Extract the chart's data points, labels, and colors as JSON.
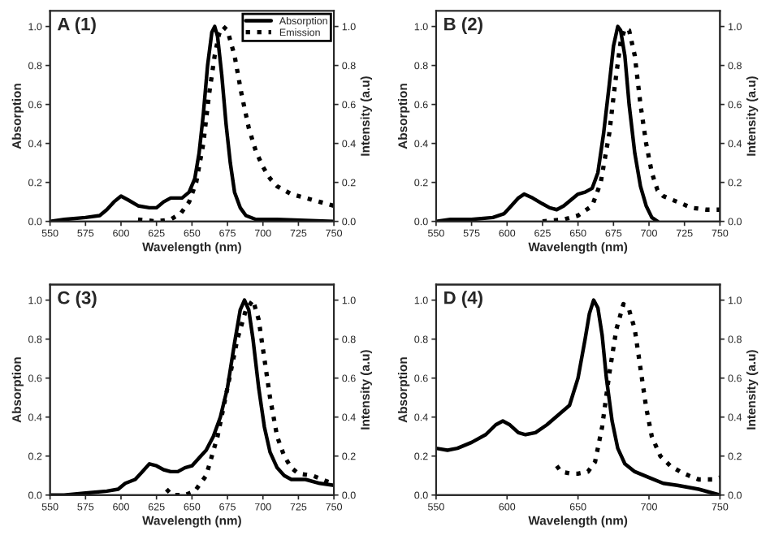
{
  "chart_data": [
    {
      "type": "line",
      "title": "A (1)",
      "xlabel": "Wavelength (nm)",
      "ylabel": "Absorption",
      "y2label": "Intensity (a.u)",
      "legend": "top right",
      "xlim": [
        550,
        750
      ],
      "xticks": [
        550,
        575,
        600,
        625,
        650,
        675,
        700,
        725,
        750
      ],
      "ylim": [
        0,
        1.08
      ],
      "yticks": [
        {
          "value": 0,
          "label": "0.0"
        },
        {
          "value": 0.2,
          "label": "0.2"
        },
        {
          "value": 0.4,
          "label": "0.4"
        },
        {
          "value": 0.6,
          "label": "0.6"
        },
        {
          "value": 0.8,
          "label": "0.8"
        },
        {
          "value": 1,
          "label": "1.0"
        }
      ],
      "y2lim": [
        0,
        1.08
      ],
      "y2ticks": [
        {
          "value": 0,
          "label": "0.0"
        },
        {
          "value": 0.2,
          "label": "0.2"
        },
        {
          "value": 0.4,
          "label": "0.4"
        },
        {
          "value": 0.6,
          "label": "0.6"
        },
        {
          "value": 0.8,
          "label": "0.8"
        },
        {
          "value": 1,
          "label": "1.0"
        }
      ],
      "series": [
        {
          "name": "Absorption",
          "color": "#000000",
          "line_style": "solid",
          "x": [
            550,
            560,
            575,
            585,
            590,
            595,
            600,
            605,
            612,
            620,
            625,
            630,
            635,
            640,
            643,
            648,
            652,
            655,
            658,
            661,
            664,
            666,
            668,
            671,
            674,
            677,
            680,
            684,
            688,
            695,
            710,
            750
          ],
          "values": [
            0.0,
            0.01,
            0.02,
            0.03,
            0.06,
            0.1,
            0.13,
            0.11,
            0.08,
            0.07,
            0.07,
            0.1,
            0.12,
            0.12,
            0.12,
            0.15,
            0.22,
            0.35,
            0.55,
            0.8,
            0.97,
            1.0,
            0.95,
            0.75,
            0.5,
            0.3,
            0.15,
            0.07,
            0.03,
            0.01,
            0.01,
            0.0
          ]
        },
        {
          "name": "Emission",
          "color": "#000000",
          "line_style": "dotted",
          "axis": "y2",
          "x": [
            612,
            625,
            635,
            642,
            648,
            653,
            658,
            662,
            666,
            669,
            672,
            675,
            680,
            685,
            690,
            695,
            700,
            705,
            710,
            720,
            730,
            740,
            750
          ],
          "values": [
            0.01,
            0.0,
            0.01,
            0.04,
            0.1,
            0.2,
            0.4,
            0.65,
            0.85,
            0.96,
            1.0,
            0.98,
            0.85,
            0.65,
            0.48,
            0.36,
            0.28,
            0.22,
            0.18,
            0.14,
            0.12,
            0.1,
            0.08
          ]
        }
      ]
    },
    {
      "type": "line",
      "title": "B (2)",
      "xlabel": "Wavelength (nm)",
      "ylabel": "Absorption",
      "y2label": "Intensity (a.u)",
      "xlim": [
        550,
        750
      ],
      "xticks": [
        550,
        575,
        600,
        625,
        650,
        675,
        700,
        725,
        750
      ],
      "ylim": [
        0,
        1.08
      ],
      "yticks": [
        {
          "value": 0,
          "label": "0.0"
        },
        {
          "value": 0.2,
          "label": "0.2"
        },
        {
          "value": 0.4,
          "label": "0.4"
        },
        {
          "value": 0.6,
          "label": "0.6"
        },
        {
          "value": 0.8,
          "label": "0.8"
        },
        {
          "value": 1,
          "label": "1.0"
        }
      ],
      "y2lim": [
        0,
        1.08
      ],
      "y2ticks": [
        {
          "value": 0,
          "label": "0.0"
        },
        {
          "value": 0.2,
          "label": "0.2"
        },
        {
          "value": 0.4,
          "label": "0.4"
        },
        {
          "value": 0.6,
          "label": "0.6"
        },
        {
          "value": 0.8,
          "label": "0.8"
        },
        {
          "value": 1,
          "label": "1.0"
        }
      ],
      "series": [
        {
          "color": "#000000",
          "line_style": "solid",
          "x": [
            550,
            560,
            575,
            590,
            598,
            603,
            608,
            612,
            618,
            625,
            630,
            635,
            640,
            645,
            650,
            655,
            660,
            664,
            668,
            672,
            675,
            678,
            680,
            683,
            686,
            690,
            694,
            698,
            702,
            706
          ],
          "values": [
            0.0,
            0.01,
            0.01,
            0.02,
            0.04,
            0.08,
            0.12,
            0.14,
            0.12,
            0.09,
            0.07,
            0.06,
            0.08,
            0.11,
            0.14,
            0.15,
            0.17,
            0.25,
            0.45,
            0.7,
            0.9,
            1.0,
            0.98,
            0.85,
            0.6,
            0.35,
            0.18,
            0.08,
            0.02,
            0.0
          ]
        },
        {
          "color": "#000000",
          "line_style": "dotted",
          "axis": "y2",
          "x": [
            625,
            640,
            650,
            660,
            666,
            672,
            676,
            680,
            683,
            686,
            690,
            694,
            698,
            702,
            706,
            710,
            720,
            730,
            740,
            750
          ],
          "values": [
            0.0,
            0.01,
            0.03,
            0.08,
            0.2,
            0.45,
            0.7,
            0.92,
            0.99,
            0.98,
            0.85,
            0.6,
            0.4,
            0.25,
            0.16,
            0.13,
            0.1,
            0.07,
            0.06,
            0.06
          ]
        }
      ]
    },
    {
      "type": "line",
      "title": "C (3)",
      "xlabel": "Wavelength (nm)",
      "ylabel": "Absorption",
      "y2label": "Intensity (a.u)",
      "xlim": [
        550,
        750
      ],
      "xticks": [
        550,
        575,
        600,
        625,
        650,
        675,
        700,
        725,
        750
      ],
      "ylim": [
        0,
        1.08
      ],
      "yticks": [
        {
          "value": 0,
          "label": "0.0"
        },
        {
          "value": 0.2,
          "label": "0.2"
        },
        {
          "value": 0.4,
          "label": "0.4"
        },
        {
          "value": 0.6,
          "label": "0.6"
        },
        {
          "value": 0.8,
          "label": "0.8"
        },
        {
          "value": 1,
          "label": "1.0"
        }
      ],
      "y2lim": [
        0,
        1.08
      ],
      "y2ticks": [
        {
          "value": 0,
          "label": "0.0"
        },
        {
          "value": 0.2,
          "label": "0.2"
        },
        {
          "value": 0.4,
          "label": "0.4"
        },
        {
          "value": 0.6,
          "label": "0.6"
        },
        {
          "value": 0.8,
          "label": "0.8"
        },
        {
          "value": 1,
          "label": "1.0"
        }
      ],
      "series": [
        {
          "color": "#000000",
          "line_style": "solid",
          "x": [
            550,
            560,
            575,
            590,
            598,
            603,
            610,
            615,
            620,
            625,
            630,
            635,
            640,
            645,
            650,
            655,
            660,
            665,
            670,
            675,
            680,
            684,
            687,
            690,
            693,
            697,
            701,
            705,
            710,
            715,
            720,
            730,
            740,
            750
          ],
          "values": [
            0.0,
            0.0,
            0.01,
            0.02,
            0.03,
            0.06,
            0.08,
            0.12,
            0.16,
            0.15,
            0.13,
            0.12,
            0.12,
            0.14,
            0.15,
            0.19,
            0.23,
            0.3,
            0.4,
            0.55,
            0.78,
            0.95,
            1.0,
            0.95,
            0.8,
            0.55,
            0.35,
            0.22,
            0.14,
            0.1,
            0.08,
            0.08,
            0.06,
            0.05
          ]
        },
        {
          "color": "#000000",
          "line_style": "dotted",
          "axis": "y2",
          "x": [
            632,
            636,
            645,
            652,
            660,
            668,
            675,
            682,
            688,
            693,
            697,
            700,
            705,
            710,
            715,
            720,
            725,
            735,
            745,
            750
          ],
          "values": [
            0.03,
            0.0,
            0.0,
            0.02,
            0.1,
            0.3,
            0.55,
            0.8,
            0.95,
            1.0,
            0.9,
            0.75,
            0.5,
            0.3,
            0.2,
            0.14,
            0.11,
            0.1,
            0.07,
            0.06
          ]
        }
      ]
    },
    {
      "type": "line",
      "title": "D (4)",
      "xlabel": "Wavelength (nm)",
      "ylabel": "Absorption",
      "y2label": "Intensity (a.u)",
      "xlim": [
        550,
        750
      ],
      "xticks": [
        550,
        600,
        650,
        700,
        750
      ],
      "ylim": [
        0,
        1.08
      ],
      "yticks": [
        {
          "value": 0,
          "label": "0.0"
        },
        {
          "value": 0.2,
          "label": "0.2"
        },
        {
          "value": 0.4,
          "label": "0.4"
        },
        {
          "value": 0.6,
          "label": "0.6"
        },
        {
          "value": 0.8,
          "label": "0.8"
        },
        {
          "value": 1,
          "label": "1.0"
        }
      ],
      "y2lim": [
        0,
        1.08
      ],
      "y2ticks": [
        {
          "value": 0,
          "label": "0.0"
        },
        {
          "value": 0.2,
          "label": "0.2"
        },
        {
          "value": 0.4,
          "label": "0.4"
        },
        {
          "value": 0.6,
          "label": "0.6"
        },
        {
          "value": 0.8,
          "label": "0.8"
        },
        {
          "value": 1,
          "label": "1.0"
        }
      ],
      "series": [
        {
          "color": "#000000",
          "line_style": "solid",
          "x": [
            550,
            558,
            565,
            575,
            585,
            592,
            597,
            602,
            608,
            613,
            620,
            628,
            636,
            644,
            650,
            655,
            658,
            661,
            664,
            667,
            670,
            674,
            678,
            683,
            690,
            700,
            710,
            720,
            735,
            750
          ],
          "values": [
            0.24,
            0.23,
            0.24,
            0.27,
            0.31,
            0.36,
            0.38,
            0.36,
            0.32,
            0.31,
            0.32,
            0.36,
            0.41,
            0.46,
            0.6,
            0.8,
            0.93,
            1.0,
            0.96,
            0.82,
            0.6,
            0.38,
            0.24,
            0.16,
            0.12,
            0.09,
            0.06,
            0.05,
            0.03,
            0.0
          ]
        },
        {
          "color": "#000000",
          "line_style": "dotted",
          "axis": "y2",
          "x": [
            635,
            638,
            645,
            650,
            657,
            662,
            667,
            672,
            677,
            682,
            686,
            690,
            694,
            698,
            702,
            708,
            715,
            722,
            728,
            735,
            745,
            750
          ],
          "values": [
            0.15,
            0.12,
            0.11,
            0.11,
            0.12,
            0.17,
            0.35,
            0.62,
            0.85,
            0.98,
            0.95,
            0.85,
            0.65,
            0.45,
            0.3,
            0.2,
            0.15,
            0.12,
            0.1,
            0.08,
            0.08,
            0.09
          ]
        }
      ]
    }
  ]
}
